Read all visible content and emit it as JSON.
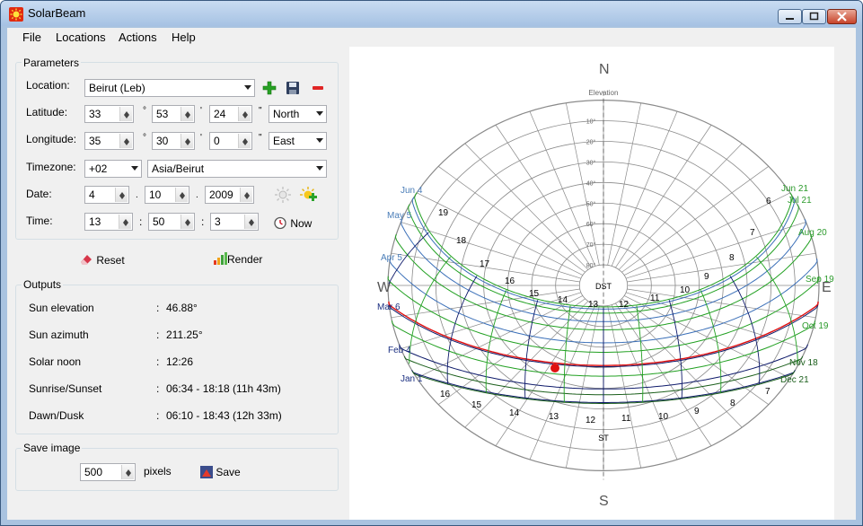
{
  "window": {
    "title": "SolarBeam"
  },
  "menu": [
    "File",
    "Locations",
    "Actions",
    "Help"
  ],
  "parameters": {
    "group_title": "Parameters",
    "location_label": "Location:",
    "location_value": "Beirut (Leb)",
    "latitude_label": "Latitude:",
    "lat_deg": "33",
    "lat_min": "53",
    "lat_sec": "24",
    "lat_dir": "North",
    "longitude_label": "Longitude:",
    "lon_deg": "35",
    "lon_min": "30",
    "lon_sec": "0",
    "lon_dir": "East",
    "timezone_label": "Timezone:",
    "tz_offset": "+02",
    "tz_name": "Asia/Beirut",
    "date_label": "Date:",
    "date_day": "4",
    "date_month": "10",
    "date_year": "2009",
    "time_label": "Time:",
    "time_h": "13",
    "time_m": "50",
    "time_s": "3",
    "now_label": "Now",
    "deg_sym": "°",
    "min_sym": "'",
    "sec_sym": "\"",
    "date_sep": ".",
    "time_sep": ":"
  },
  "actions": {
    "reset_label": "Reset",
    "render_label": "Render"
  },
  "outputs": {
    "group_title": "Outputs",
    "rows": [
      {
        "label": "Sun elevation",
        "value": "46.88°"
      },
      {
        "label": "Sun azimuth",
        "value": "211.25°"
      },
      {
        "label": "Solar noon",
        "value": "12:26"
      },
      {
        "label": "Sunrise/Sunset",
        "value": "06:34 - 18:18  (11h 43m)"
      },
      {
        "label": "Dawn/Dusk",
        "value": "06:10 - 18:43  (12h 33m)"
      }
    ]
  },
  "save_image": {
    "group_title": "Save image",
    "size": "500",
    "unit": "pixels",
    "save_label": "Save"
  },
  "chart_data": {
    "type": "sun-path-diagram",
    "compass": {
      "N": "N",
      "S": "S",
      "E": "E",
      "W": "W"
    },
    "elevation_title": "Elevation",
    "elevation_ticks": [
      "10°",
      "20°",
      "30°",
      "40°",
      "50°",
      "60°",
      "70°",
      "80°"
    ],
    "center_label": "DST",
    "bottom_label": "ST",
    "sun_position": {
      "azimuth": 211.25,
      "elevation": 46.88
    },
    "date_labels_left": [
      {
        "text": "Jun 4",
        "color": "#4a7db8"
      },
      {
        "text": "May 5",
        "color": "#4a7db8"
      },
      {
        "text": "Apr 5",
        "color": "#4a7db8"
      },
      {
        "text": "Mar 6",
        "color": "#1a2e80"
      },
      {
        "text": "Feb 4",
        "color": "#1a2e80"
      },
      {
        "text": "Jan 1",
        "color": "#1a2e80"
      }
    ],
    "date_labels_right": [
      {
        "text": "Jun 21",
        "color": "#2b9a2b"
      },
      {
        "text": "Jul 21",
        "color": "#2b9a2b"
      },
      {
        "text": "Aug 20",
        "color": "#2b9a2b"
      },
      {
        "text": "Sep 19",
        "color": "#2b9a2b"
      },
      {
        "text": "Oct 19",
        "color": "#2b9a2b"
      },
      {
        "text": "Nov 18",
        "color": "#1a5e1a"
      },
      {
        "text": "Dec 21",
        "color": "#1a5e1a"
      }
    ],
    "hour_labels_upper": [
      "19",
      "18",
      "17",
      "16",
      "15",
      "14",
      "13",
      "12",
      "11",
      "10",
      "9",
      "8",
      "7",
      "6"
    ],
    "hour_labels_lower": [
      "16",
      "15",
      "14",
      "13",
      "12",
      "11",
      "10",
      "9",
      "8",
      "7"
    ],
    "colors": {
      "today": "#e01010",
      "blue_paths": "#3a6fb8",
      "green_paths": "#21a021",
      "dark_paths": "#0e1a6a",
      "grid": "#8a8a8a"
    }
  }
}
